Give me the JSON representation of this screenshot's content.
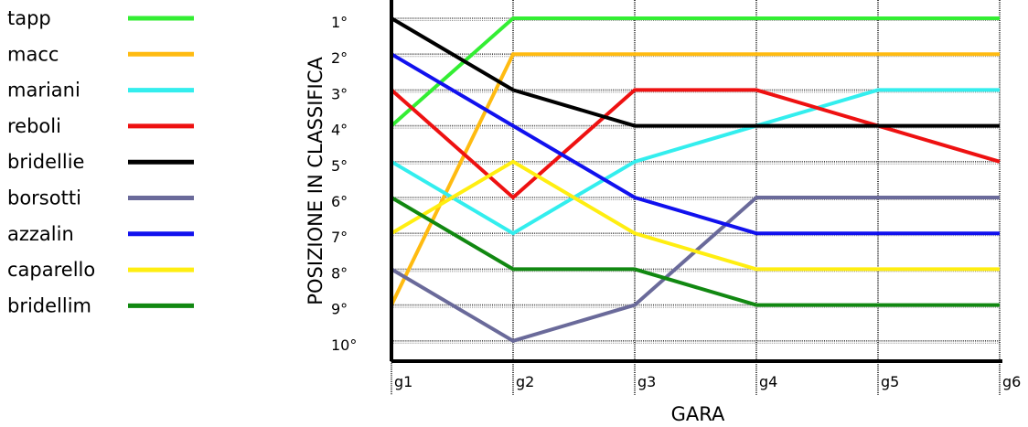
{
  "chart_data": {
    "type": "line",
    "xlabel": "GARA",
    "ylabel": "POSIZIONE IN CLASSIFICA",
    "categories": [
      "g1",
      "g2",
      "g3",
      "g4",
      "g5",
      "g6"
    ],
    "y_tick_labels": [
      "1°",
      "2°",
      "3°",
      "4°",
      "5°",
      "6°",
      "7°",
      "8°",
      "9°",
      "10°"
    ],
    "ylim": [
      1,
      10
    ],
    "y_inverted": true,
    "grid": true,
    "legend_position": "left",
    "series": [
      {
        "name": "tapp",
        "color": "#33ee33",
        "values": [
          4,
          1,
          1,
          1,
          1,
          1
        ]
      },
      {
        "name": "macc",
        "color": "#ffbb11",
        "values": [
          9,
          2,
          2,
          2,
          2,
          2
        ]
      },
      {
        "name": "mariani",
        "color": "#33eeee",
        "values": [
          5,
          7,
          5,
          4,
          3,
          3
        ]
      },
      {
        "name": "reboli",
        "color": "#ee1111",
        "values": [
          3,
          6,
          3,
          3,
          4,
          5
        ]
      },
      {
        "name": "bridellie",
        "color": "#000000",
        "values": [
          1,
          3,
          4,
          4,
          4,
          4
        ]
      },
      {
        "name": "borsotti",
        "color": "#6a6a9a",
        "values": [
          8,
          10,
          9,
          6,
          6,
          6
        ]
      },
      {
        "name": "azzalin",
        "color": "#1111ee",
        "values": [
          2,
          4,
          6,
          7,
          7,
          7
        ]
      },
      {
        "name": "caparello",
        "color": "#ffee11",
        "values": [
          7,
          5,
          7,
          8,
          8,
          8
        ]
      },
      {
        "name": "bridellim",
        "color": "#118811",
        "values": [
          6,
          8,
          8,
          9,
          9,
          9
        ]
      }
    ]
  }
}
